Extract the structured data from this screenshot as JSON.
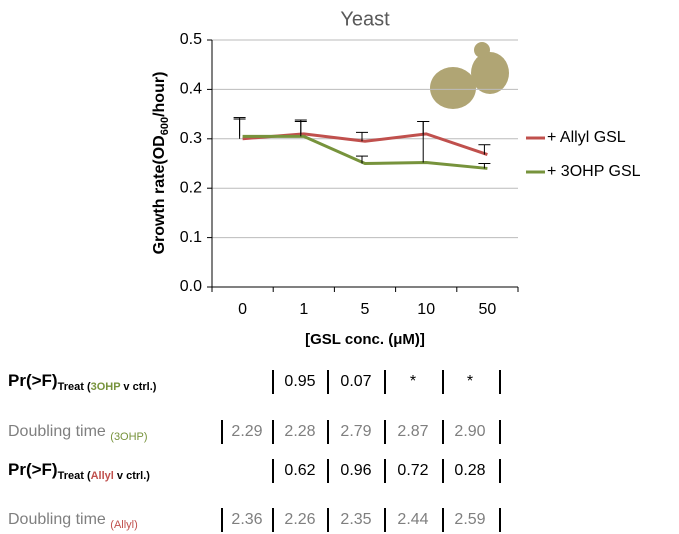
{
  "chart_data": {
    "type": "line",
    "title": "Yeast",
    "y_label": "Growth rate(OD",
    "y_label_sub": "600",
    "y_label_end": "/hour)",
    "x_label": "[GSL conc. (μM)]",
    "categories": [
      "0",
      "1",
      "5",
      "10",
      "50"
    ],
    "series": [
      {
        "name": "+ Allyl GSL",
        "color": "#c0504d",
        "values": [
          0.3,
          0.31,
          0.295,
          0.31,
          0.268
        ],
        "errors": [
          0.043,
          0.028,
          0.018,
          0.025,
          0.02
        ]
      },
      {
        "name": "+ 3OHP GSL",
        "color": "#77933c",
        "values": [
          0.305,
          0.305,
          0.25,
          0.252,
          0.24
        ],
        "errors": [
          0.035,
          0.03,
          0.015,
          0.083,
          0.01
        ]
      }
    ],
    "ylim": [
      0,
      0.5
    ],
    "yticks": [
      {
        "value": 0,
        "label": "0.0"
      },
      {
        "value": 0.1,
        "label": "0.1"
      },
      {
        "value": 0.2,
        "label": "0.2"
      },
      {
        "value": 0.3,
        "label": "0.3"
      },
      {
        "value": 0.4,
        "label": "0.4"
      },
      {
        "value": 0.5,
        "label": "0.5"
      }
    ],
    "grid": true
  },
  "table": {
    "rows": [
      {
        "label": "Pr(>F)",
        "label_sub": "Treat (",
        "label_tag": "3OHP",
        "label_end": " v ctrl.)",
        "tag_color": "#77933c",
        "cells": [
          null,
          "0.95",
          "0.07",
          "*",
          "*"
        ]
      },
      {
        "label": "Doubling time ",
        "label_tag": "(3OHP)",
        "tag_color": "#77933c",
        "cells": [
          "2.29",
          "2.28",
          "2.79",
          "2.87",
          "2.90"
        ]
      },
      {
        "label": "Pr(>F)",
        "label_sub": "Treat (",
        "label_tag": "Allyl",
        "label_end": " v ctrl.)",
        "tag_color": "#c0504d",
        "cells": [
          null,
          "0.62",
          "0.96",
          "0.72",
          "0.28"
        ]
      },
      {
        "label": "Doubling time ",
        "label_tag": "(Allyl)",
        "tag_color": "#c0504d",
        "cells": [
          "2.36",
          "2.26",
          "2.35",
          "2.44",
          "2.59"
        ]
      }
    ]
  }
}
